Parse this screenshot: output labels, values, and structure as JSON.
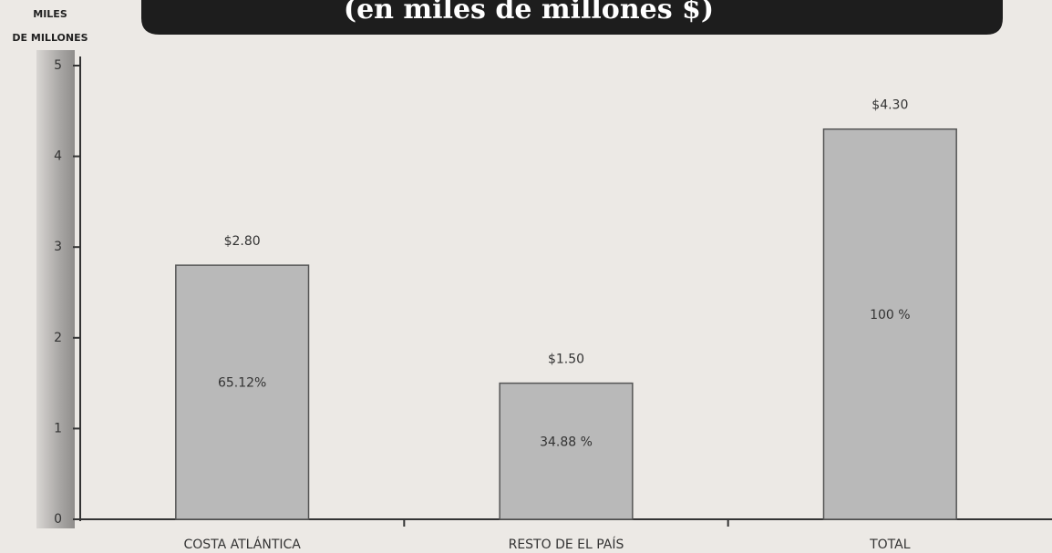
{
  "chart_data": {
    "type": "bar",
    "title": "(en miles de millones $)",
    "ylabel_lines": [
      "MILES",
      "DE MILLONES"
    ],
    "categories": [
      "COSTA ATLÁNTICA",
      "RESTO DE EL PAÍS",
      "TOTAL"
    ],
    "values": [
      2.8,
      1.5,
      4.3
    ],
    "value_labels": [
      "$2.80",
      "$1.50",
      "$4.30"
    ],
    "share_labels": [
      "65.12%",
      "34.88 %",
      "100 %"
    ],
    "color": "#b9b9b9",
    "ylim": [
      0,
      5
    ],
    "yticks": [
      0,
      1,
      2,
      3,
      4,
      5
    ],
    "grid": false
  }
}
